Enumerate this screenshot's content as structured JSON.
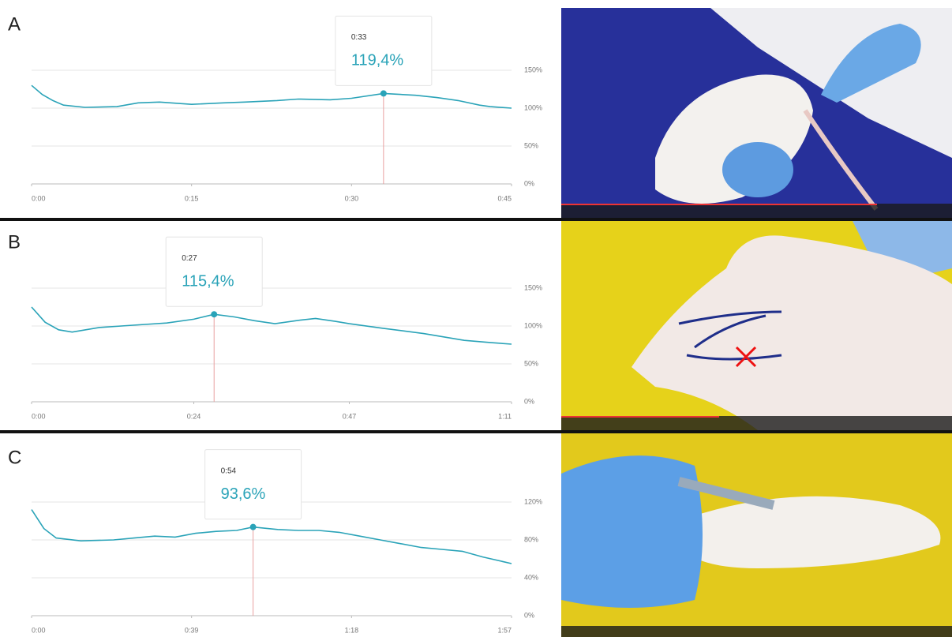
{
  "chart_data": [
    {
      "type": "line",
      "panel_label": "A",
      "color": "#2aa3b8",
      "x": [
        0,
        1,
        2,
        3,
        5,
        8,
        10,
        12,
        15,
        18,
        20,
        23,
        25,
        28,
        30,
        33,
        36,
        38,
        40,
        42,
        43,
        45
      ],
      "values": [
        130,
        118,
        110,
        104,
        101,
        102,
        107,
        108,
        105,
        107,
        108,
        110,
        112,
        111,
        113,
        119.4,
        117,
        114,
        110,
        104,
        102,
        100
      ],
      "xlim": [
        0,
        45
      ],
      "xticks": [
        {
          "value": 0,
          "label": "0:00"
        },
        {
          "value": 15,
          "label": "0:15"
        },
        {
          "value": 30,
          "label": "0:30"
        },
        {
          "value": 45,
          "label": "0:45"
        }
      ],
      "ylim": [
        0,
        200
      ],
      "yticks": [
        {
          "value": 0,
          "label": "0%"
        },
        {
          "value": 50,
          "label": "50%"
        },
        {
          "value": 100,
          "label": "100%"
        },
        {
          "value": 150,
          "label": "150%"
        }
      ],
      "grid": true,
      "tooltip": {
        "time_label": "0:33",
        "value_label": "119,4%",
        "x": 33,
        "value": 119.4
      }
    },
    {
      "type": "line",
      "panel_label": "B",
      "color": "#2aa3b8",
      "x": [
        0,
        2,
        4,
        6,
        10,
        15,
        20,
        24,
        27,
        30,
        33,
        36,
        40,
        42,
        45,
        47,
        52,
        58,
        64,
        68,
        71
      ],
      "values": [
        125,
        105,
        95,
        92,
        98,
        101,
        104,
        109,
        115.4,
        112,
        107,
        103,
        108,
        110,
        106,
        103,
        97,
        90,
        81,
        78,
        76
      ],
      "xlim": [
        0,
        71
      ],
      "xticks": [
        {
          "value": 0,
          "label": "0:00"
        },
        {
          "value": 24,
          "label": "0:24"
        },
        {
          "value": 47,
          "label": "0:47"
        },
        {
          "value": 71,
          "label": "1:11"
        }
      ],
      "ylim": [
        0,
        200
      ],
      "yticks": [
        {
          "value": 0,
          "label": "0%"
        },
        {
          "value": 50,
          "label": "50%"
        },
        {
          "value": 100,
          "label": "100%"
        },
        {
          "value": 150,
          "label": "150%"
        }
      ],
      "grid": true,
      "tooltip": {
        "time_label": "0:27",
        "value_label": "115,4%",
        "x": 27,
        "value": 115.4
      }
    },
    {
      "type": "line",
      "panel_label": "C",
      "color": "#2aa3b8",
      "x": [
        0,
        3,
        6,
        12,
        20,
        25,
        30,
        35,
        40,
        45,
        50,
        54,
        60,
        65,
        70,
        75,
        80,
        85,
        90,
        95,
        100,
        105,
        110,
        117
      ],
      "values": [
        112,
        92,
        82,
        79,
        80,
        82,
        84,
        83,
        87,
        89,
        90,
        93.6,
        91,
        90,
        90,
        88,
        84,
        80,
        76,
        72,
        70,
        68,
        62,
        55
      ],
      "xlim": [
        0,
        117
      ],
      "xticks": [
        {
          "value": 0,
          "label": "0:00"
        },
        {
          "value": 39,
          "label": "0:39"
        },
        {
          "value": 78,
          "label": "1:18"
        },
        {
          "value": 117,
          "label": "1:57"
        }
      ],
      "ylim": [
        0,
        160
      ],
      "yticks": [
        {
          "value": 0,
          "label": "0%"
        },
        {
          "value": 40,
          "label": "40%"
        },
        {
          "value": 80,
          "label": "80%"
        },
        {
          "value": 120,
          "label": "120%"
        }
      ],
      "grid": true,
      "tooltip": {
        "time_label": "0:54",
        "value_label": "93,6%",
        "x": 54,
        "value": 93.6
      }
    }
  ]
}
